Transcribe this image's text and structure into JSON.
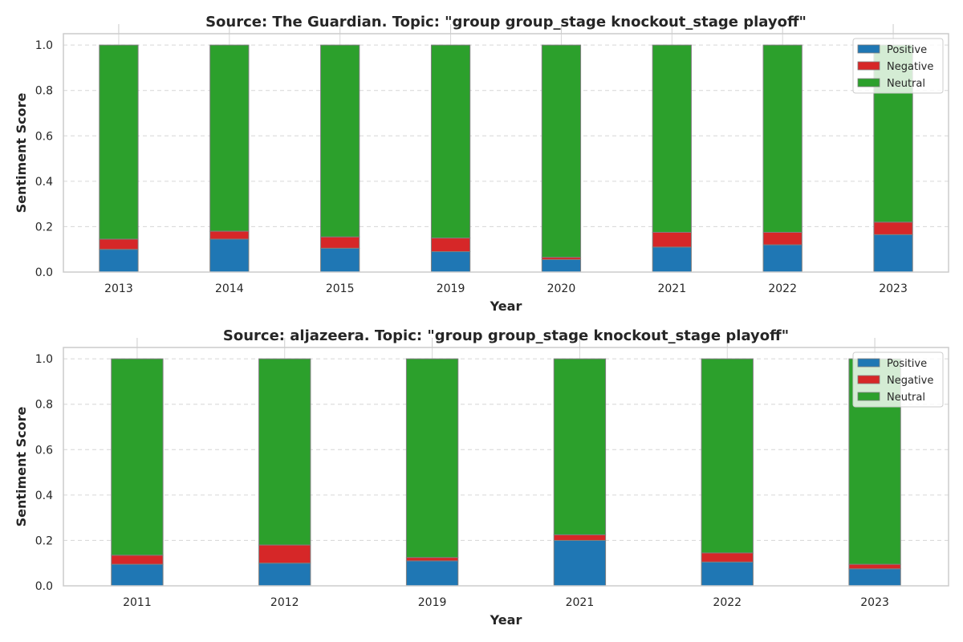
{
  "chart_data": [
    {
      "type": "bar",
      "stacked": true,
      "title": "Source: The Guardian. Topic: \"group group_stage knockout_stage playoff\"",
      "xlabel": "Year",
      "ylabel": "Sentiment Score",
      "ylim": [
        0,
        1.05
      ],
      "yticks": [
        "0.0",
        "0.2",
        "0.4",
        "0.6",
        "0.8",
        "1.0"
      ],
      "grid": true,
      "legend": "top-right",
      "categories": [
        "2013",
        "2014",
        "2015",
        "2019",
        "2020",
        "2021",
        "2022",
        "2023"
      ],
      "series": [
        {
          "name": "Positive",
          "color": "#1f77b4",
          "values": [
            0.1,
            0.145,
            0.105,
            0.09,
            0.055,
            0.11,
            0.12,
            0.165
          ]
        },
        {
          "name": "Negative",
          "color": "#d62728",
          "values": [
            0.045,
            0.035,
            0.05,
            0.06,
            0.01,
            0.065,
            0.055,
            0.055
          ]
        },
        {
          "name": "Neutral",
          "color": "#2ca02c",
          "values": [
            0.855,
            0.82,
            0.845,
            0.85,
            0.935,
            0.825,
            0.825,
            0.78
          ]
        }
      ]
    },
    {
      "type": "bar",
      "stacked": true,
      "title": "Source: aljazeera. Topic: \"group group_stage knockout_stage playoff\"",
      "xlabel": "Year",
      "ylabel": "Sentiment Score",
      "ylim": [
        0,
        1.05
      ],
      "yticks": [
        "0.0",
        "0.2",
        "0.4",
        "0.6",
        "0.8",
        "1.0"
      ],
      "grid": true,
      "legend": "top-right",
      "categories": [
        "2011",
        "2012",
        "2019",
        "2021",
        "2022",
        "2023"
      ],
      "series": [
        {
          "name": "Positive",
          "color": "#1f77b4",
          "values": [
            0.095,
            0.1,
            0.11,
            0.2,
            0.105,
            0.075
          ]
        },
        {
          "name": "Negative",
          "color": "#d62728",
          "values": [
            0.04,
            0.08,
            0.015,
            0.025,
            0.04,
            0.02
          ]
        },
        {
          "name": "Neutral",
          "color": "#2ca02c",
          "values": [
            0.865,
            0.82,
            0.875,
            0.775,
            0.855,
            0.905
          ]
        }
      ]
    }
  ]
}
